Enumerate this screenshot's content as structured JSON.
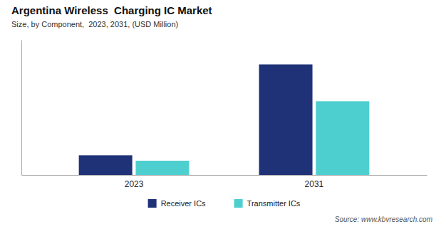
{
  "chart_data": {
    "type": "bar",
    "title": "Argentina Wireless  Charging IC Market",
    "subtitle": "Size, by Component,  2023, 2031, (USD Million)",
    "source": "Source: www.kbvresearch.com",
    "categories": [
      "2023",
      "2031"
    ],
    "series": [
      {
        "name": "Receiver ICs",
        "color": "#1f3278",
        "values": [
          0.8,
          4.5
        ]
      },
      {
        "name": "Transmitter ICs",
        "color": "#4ecfcf",
        "values": [
          0.58,
          3.0
        ]
      }
    ],
    "ylim": [
      0,
      5.5
    ],
    "grid": false,
    "legend": "bottom",
    "tick_labels": "x"
  }
}
